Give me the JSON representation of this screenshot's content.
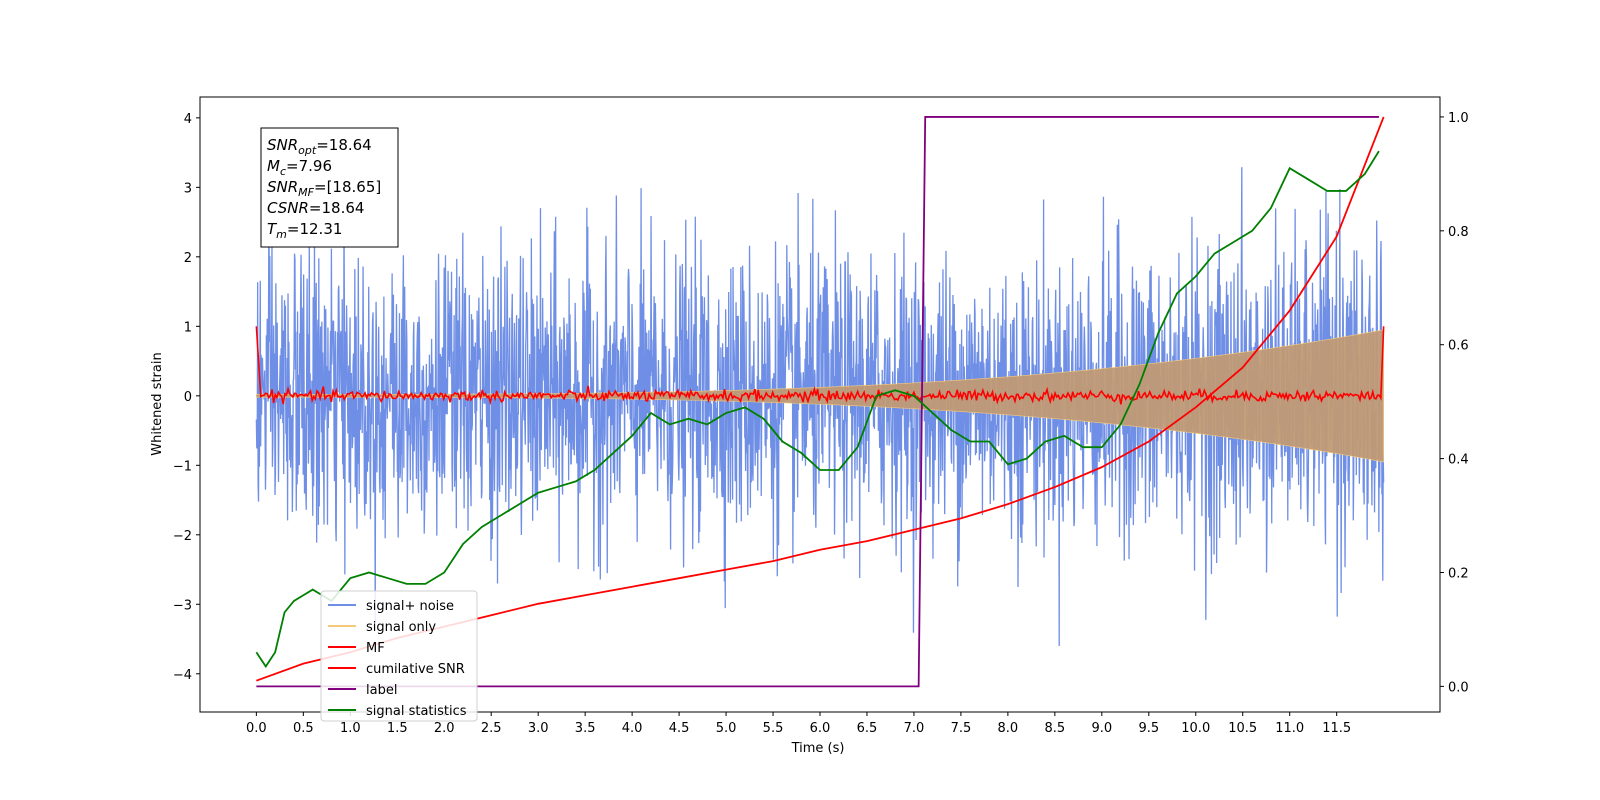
{
  "chart_data": {
    "type": "line",
    "xlabel": "Time (s)",
    "ylabel": "Whitened strain",
    "xlim": [
      -0.6,
      12.6
    ],
    "ylim": [
      -4.55,
      4.3
    ],
    "y2lim": [
      -0.045,
      1.035
    ],
    "x_ticks": [
      0.0,
      0.5,
      1.0,
      1.5,
      2.0,
      2.5,
      3.0,
      3.5,
      4.0,
      4.5,
      5.0,
      5.5,
      6.0,
      6.5,
      7.0,
      7.5,
      8.0,
      8.5,
      9.0,
      9.5,
      10.0,
      10.5,
      11.0,
      11.5
    ],
    "x_tick_labels": [
      "0.0",
      "0.5",
      "1.0",
      "1.5",
      "2.0",
      "2.5",
      "3.0",
      "3.5",
      "4.0",
      "4.5",
      "5.0",
      "5.5",
      "6.0",
      "6.5",
      "7.0",
      "7.5",
      "8.0",
      "8.5",
      "9.0",
      "9.5",
      "10.0",
      "10.5",
      "11.0",
      "11.5"
    ],
    "y_ticks": [
      4,
      3,
      2,
      1,
      0,
      -1,
      -2,
      -3,
      -4
    ],
    "y_tick_labels": [
      "4",
      "3",
      "2",
      "1",
      "0",
      "−1",
      "−2",
      "−3",
      "−4"
    ],
    "y2_ticks": [
      1.0,
      0.8,
      0.6,
      0.4,
      0.2,
      0.0
    ],
    "y2_tick_labels": [
      "1.0",
      "0.8",
      "0.6",
      "0.4",
      "0.2",
      "0.0"
    ],
    "legend_position": "lower-left",
    "grid": false,
    "series": [
      {
        "name": "signal+ noise",
        "color": "#6f8fe6",
        "axis": "left",
        "kind": "noise",
        "amplitude_sigma": 1.0,
        "t_start": 0.0,
        "t_end": 12.0
      },
      {
        "name": "signal only",
        "color": "#f5c97a",
        "axis": "left",
        "kind": "chirp",
        "amplitude_start": 0.02,
        "amplitude_end": 0.95,
        "t_start": 0.0,
        "t_end": 12.0
      },
      {
        "name": "MF",
        "color": "#ff0000",
        "axis": "left",
        "kind": "mf",
        "start_value": 1.0,
        "end_value": 1.0,
        "noise_level": 0.04
      },
      {
        "name": "cumilative SNR",
        "color": "#ff0000",
        "axis": "right",
        "x": [
          0.0,
          0.5,
          1.0,
          1.5,
          2.0,
          2.5,
          3.0,
          3.5,
          4.0,
          4.5,
          5.0,
          5.5,
          6.0,
          6.5,
          7.0,
          7.5,
          8.0,
          8.5,
          9.0,
          9.5,
          10.0,
          10.5,
          11.0,
          11.5,
          12.0
        ],
        "values": [
          0.01,
          0.04,
          0.06,
          0.085,
          0.105,
          0.125,
          0.145,
          0.16,
          0.175,
          0.19,
          0.205,
          0.22,
          0.24,
          0.255,
          0.275,
          0.295,
          0.32,
          0.35,
          0.385,
          0.43,
          0.49,
          0.56,
          0.66,
          0.79,
          1.0
        ]
      },
      {
        "name": "label",
        "color": "#800080",
        "axis": "right",
        "x": [
          0.0,
          7.05,
          7.12,
          11.95
        ],
        "values": [
          0.0,
          0.0,
          1.0,
          1.0
        ]
      },
      {
        "name": "signal statistics",
        "color": "#008000",
        "axis": "right",
        "x": [
          0.0,
          0.1,
          0.2,
          0.3,
          0.4,
          0.5,
          0.6,
          0.7,
          0.8,
          0.9,
          1.0,
          1.2,
          1.4,
          1.6,
          1.8,
          2.0,
          2.2,
          2.4,
          2.6,
          2.8,
          3.0,
          3.2,
          3.4,
          3.6,
          3.8,
          4.0,
          4.2,
          4.4,
          4.6,
          4.8,
          5.0,
          5.2,
          5.4,
          5.6,
          5.8,
          6.0,
          6.2,
          6.4,
          6.6,
          6.8,
          7.0,
          7.2,
          7.4,
          7.6,
          7.8,
          8.0,
          8.2,
          8.4,
          8.6,
          8.8,
          9.0,
          9.2,
          9.4,
          9.6,
          9.8,
          10.0,
          10.2,
          10.4,
          10.6,
          10.8,
          11.0,
          11.2,
          11.4,
          11.6,
          11.8,
          11.95
        ],
        "values": [
          0.06,
          0.035,
          0.06,
          0.13,
          0.15,
          0.16,
          0.17,
          0.16,
          0.15,
          0.17,
          0.19,
          0.2,
          0.19,
          0.18,
          0.18,
          0.2,
          0.25,
          0.28,
          0.3,
          0.32,
          0.34,
          0.35,
          0.36,
          0.38,
          0.41,
          0.44,
          0.48,
          0.46,
          0.47,
          0.46,
          0.48,
          0.49,
          0.47,
          0.43,
          0.41,
          0.38,
          0.38,
          0.42,
          0.51,
          0.52,
          0.51,
          0.48,
          0.45,
          0.43,
          0.43,
          0.39,
          0.4,
          0.43,
          0.44,
          0.42,
          0.42,
          0.46,
          0.53,
          0.62,
          0.69,
          0.72,
          0.76,
          0.78,
          0.8,
          0.84,
          0.91,
          0.89,
          0.87,
          0.87,
          0.9,
          0.94
        ]
      }
    ]
  },
  "info_box": {
    "lines": [
      {
        "main": "SNR",
        "sub": "opt",
        "value": "=18.64"
      },
      {
        "main": "M",
        "sub": "c",
        "value": "=7.96"
      },
      {
        "main": "SNR",
        "sub": "MF",
        "value": "=[18.65]"
      },
      {
        "main": "CSNR",
        "sub": "",
        "value": "=18.64"
      },
      {
        "main": "T",
        "sub": "m",
        "value": "=12.31"
      }
    ]
  },
  "legend": {
    "items": [
      {
        "label": "signal+ noise",
        "color": "#6f8fe6"
      },
      {
        "label": "signal only",
        "color": "#f5c97a"
      },
      {
        "label": "MF",
        "color": "#ff0000"
      },
      {
        "label": "cumilative SNR",
        "color": "#ff0000"
      },
      {
        "label": "label",
        "color": "#800080"
      },
      {
        "label": "signal statistics",
        "color": "#008000"
      }
    ]
  }
}
